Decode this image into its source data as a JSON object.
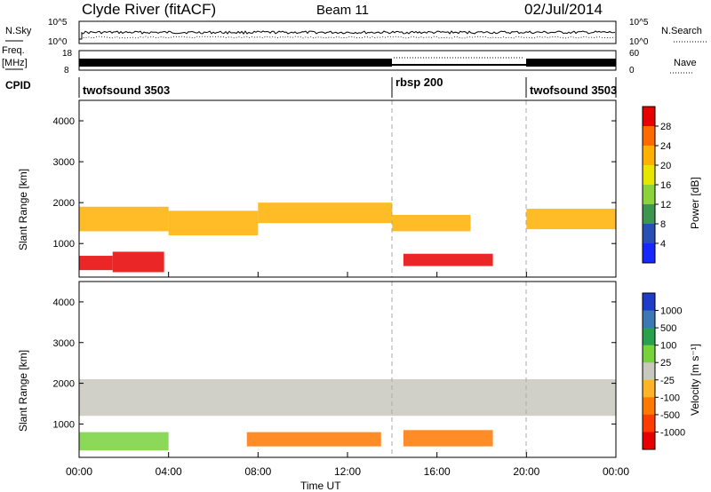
{
  "header": {
    "station": "Clyde River (fitACF)",
    "beam": "Beam 11",
    "date": "02/Jul/2014"
  },
  "noise_panel": {
    "left_label": "N.Sky",
    "right_label": "N.Search",
    "left_ticks": [
      "10^5",
      "10^0"
    ],
    "right_ticks": [
      "10^5",
      "10^0"
    ]
  },
  "freq_panel": {
    "left_label_line1": "Freq.",
    "left_label_line2": "[MHz]",
    "left_ticks": [
      "18",
      "8"
    ],
    "right_label": "Nave",
    "right_ticks": [
      "60",
      "0"
    ]
  },
  "cpid_panel": {
    "label": "CPID",
    "programs": [
      {
        "name": "twofsound 3503",
        "start_hour": 0,
        "end_hour": 14
      },
      {
        "name": "rbsp 200",
        "start_hour": 14,
        "end_hour": 20
      },
      {
        "name": "twofsound 3503",
        "start_hour": 20,
        "end_hour": 24
      }
    ]
  },
  "chart_data": [
    {
      "type": "heatmap",
      "title": "Power",
      "ylabel": "Slant Range [km]",
      "xlabel": "",
      "x_range_hours": [
        0,
        24
      ],
      "ylim": [
        180,
        4500
      ],
      "y_ticks": [
        1000,
        2000,
        3000,
        4000
      ],
      "colorbar": {
        "label": "Power [dB]",
        "ticks": [
          "28",
          "24",
          "20",
          "16",
          "12",
          "8",
          "4"
        ],
        "colors": [
          "#e60000",
          "#ff6a00",
          "#ffb000",
          "#e6e600",
          "#8cd23c",
          "#3c9650",
          "#2850b4",
          "#1428ff"
        ]
      },
      "regions": [
        {
          "t0": 0.0,
          "t1": 1.5,
          "r0": 350,
          "r1": 700,
          "level": "high"
        },
        {
          "t0": 1.5,
          "t1": 3.8,
          "r0": 300,
          "r1": 800,
          "level": "high"
        },
        {
          "t0": 0.0,
          "t1": 4.0,
          "r0": 1300,
          "r1": 1900,
          "level": "mid"
        },
        {
          "t0": 4.0,
          "t1": 8.0,
          "r0": 1200,
          "r1": 1800,
          "level": "mid"
        },
        {
          "t0": 8.0,
          "t1": 14.0,
          "r0": 1500,
          "r1": 2000,
          "level": "mid"
        },
        {
          "t0": 14.0,
          "t1": 17.5,
          "r0": 1300,
          "r1": 1700,
          "level": "mid"
        },
        {
          "t0": 14.5,
          "t1": 18.5,
          "r0": 450,
          "r1": 750,
          "level": "high"
        },
        {
          "t0": 20.0,
          "t1": 24.0,
          "r0": 1350,
          "r1": 1850,
          "level": "mid"
        }
      ]
    },
    {
      "type": "heatmap",
      "title": "Velocity",
      "ylabel": "Slant Range [km]",
      "xlabel": "Time UT",
      "x_range_hours": [
        0,
        24
      ],
      "ylim": [
        180,
        4500
      ],
      "y_ticks": [
        1000,
        2000,
        3000,
        4000
      ],
      "colorbar": {
        "label": "Velocity [m s⁻¹]",
        "ticks": [
          "1000",
          "500",
          "100",
          "25",
          "-25",
          "-100",
          "-500",
          "-1000"
        ],
        "colors": [
          "#1e3cc8",
          "#3c78b4",
          "#28a050",
          "#78d23c",
          "#c8c8be",
          "#ffb428",
          "#ff7800",
          "#ff3c00",
          "#e60000"
        ]
      },
      "regions": [
        {
          "t0": 0.0,
          "t1": 24.0,
          "r0": 1200,
          "r1": 2100,
          "level": "ground"
        },
        {
          "t0": 14.5,
          "t1": 18.5,
          "r0": 450,
          "r1": 850,
          "level": "away"
        },
        {
          "t0": 7.5,
          "t1": 13.5,
          "r0": 450,
          "r1": 800,
          "level": "away"
        },
        {
          "t0": 0.0,
          "t1": 4.0,
          "r0": 350,
          "r1": 800,
          "level": "toward"
        }
      ]
    }
  ],
  "x_ticks": [
    "00:00",
    "04:00",
    "08:00",
    "12:00",
    "16:00",
    "20:00",
    "00:00"
  ],
  "x_axis_label": "Time UT"
}
